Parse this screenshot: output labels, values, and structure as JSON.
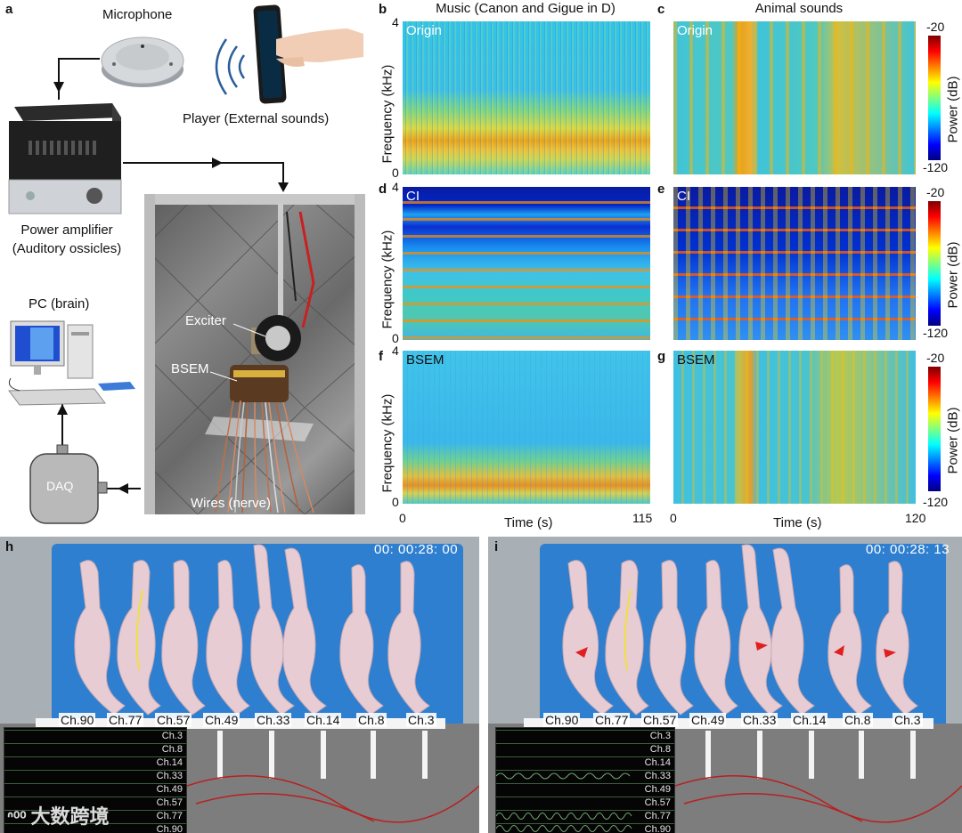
{
  "panels": {
    "a": "a",
    "b": "b",
    "c": "c",
    "d": "d",
    "e": "e",
    "f": "f",
    "g": "g",
    "h": "h",
    "i": "i"
  },
  "setup": {
    "microphone": "Microphone",
    "player": "Player (External sounds)",
    "amplifier_line1": "Power amplifier",
    "amplifier_line2": "(Auditory ossicles)",
    "pc": "PC (brain)",
    "daq": "DAQ",
    "exciter": "Exciter",
    "bsem": "BSEM",
    "wires": "Wires (nerve)"
  },
  "spectrograms": {
    "col_music_title": "Music (Canon and Gigue in D)",
    "col_animal_title": "Animal sounds",
    "ylabel": "Frequency  (kHz)",
    "xlabel": "Time (s)",
    "cbar_label": "Power (dB)",
    "cbar_max": "-20",
    "cbar_min": "-120",
    "y_max": "4",
    "y_min": "0",
    "music_x_start": "0",
    "music_x_end": "115",
    "animal_x_start": "0",
    "animal_x_end": "120",
    "row_tags": [
      "Origin",
      "CI",
      "BSEM"
    ]
  },
  "video_h": {
    "timestamp": "00: 00:28: 00",
    "channels": [
      "Ch.90",
      "Ch.77",
      "Ch.57",
      "Ch.49",
      "Ch.33",
      "Ch.14",
      "Ch.8",
      "Ch.3"
    ],
    "monitor_channels": [
      "Ch.3",
      "Ch.8",
      "Ch.14",
      "Ch.33",
      "Ch.49",
      "Ch.57",
      "Ch.77",
      "Ch.90"
    ]
  },
  "video_i": {
    "timestamp": "00: 00:28: 13",
    "channels": [
      "Ch.90",
      "Ch.77",
      "Ch.57",
      "Ch.49",
      "Ch.33",
      "Ch.14",
      "Ch.8",
      "Ch.3"
    ],
    "monitor_channels": [
      "Ch.3",
      "Ch.8",
      "Ch.14",
      "Ch.33",
      "Ch.49",
      "Ch.57",
      "Ch.77",
      "Ch.90"
    ]
  },
  "watermark": "大数跨境"
}
